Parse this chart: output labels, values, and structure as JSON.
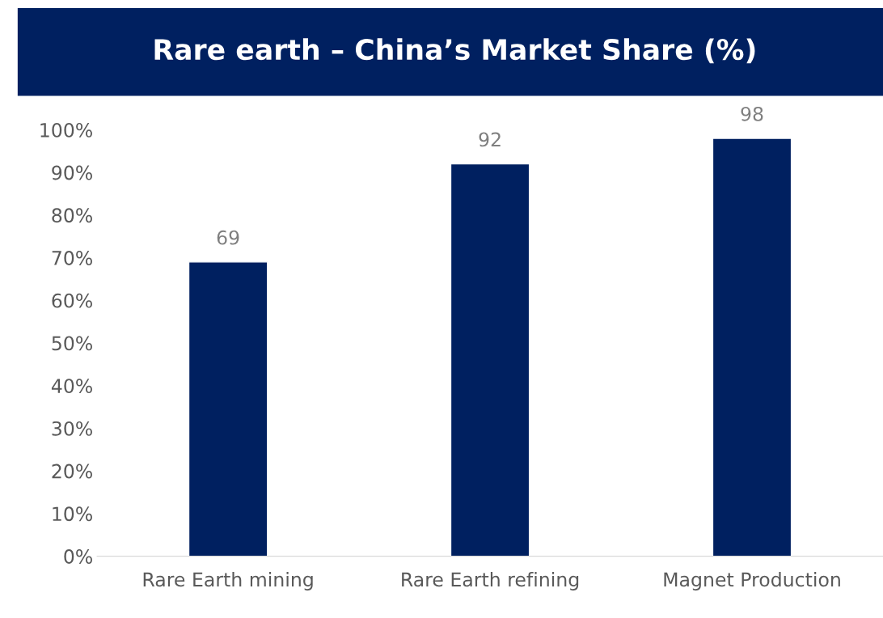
{
  "chart_data": {
    "type": "bar",
    "title": "Rare earth – China’s Market Share (%)",
    "categories": [
      "Rare Earth mining",
      "Rare Earth refining",
      "Magnet Production"
    ],
    "values": [
      69,
      92,
      98
    ],
    "color": "#002060",
    "ylim": [
      0,
      100
    ],
    "yticks": [
      {
        "value": 0,
        "label": "0%"
      },
      {
        "value": 10,
        "label": "10%"
      },
      {
        "value": 20,
        "label": "20%"
      },
      {
        "value": 30,
        "label": "30%"
      },
      {
        "value": 40,
        "label": "40%"
      },
      {
        "value": 50,
        "label": "50%"
      },
      {
        "value": 60,
        "label": "60%"
      },
      {
        "value": 70,
        "label": "70%"
      },
      {
        "value": 80,
        "label": "80%"
      },
      {
        "value": 90,
        "label": "90%"
      },
      {
        "value": 100,
        "label": "100%"
      }
    ],
    "data_labels": true,
    "grid": false,
    "legend": false
  }
}
